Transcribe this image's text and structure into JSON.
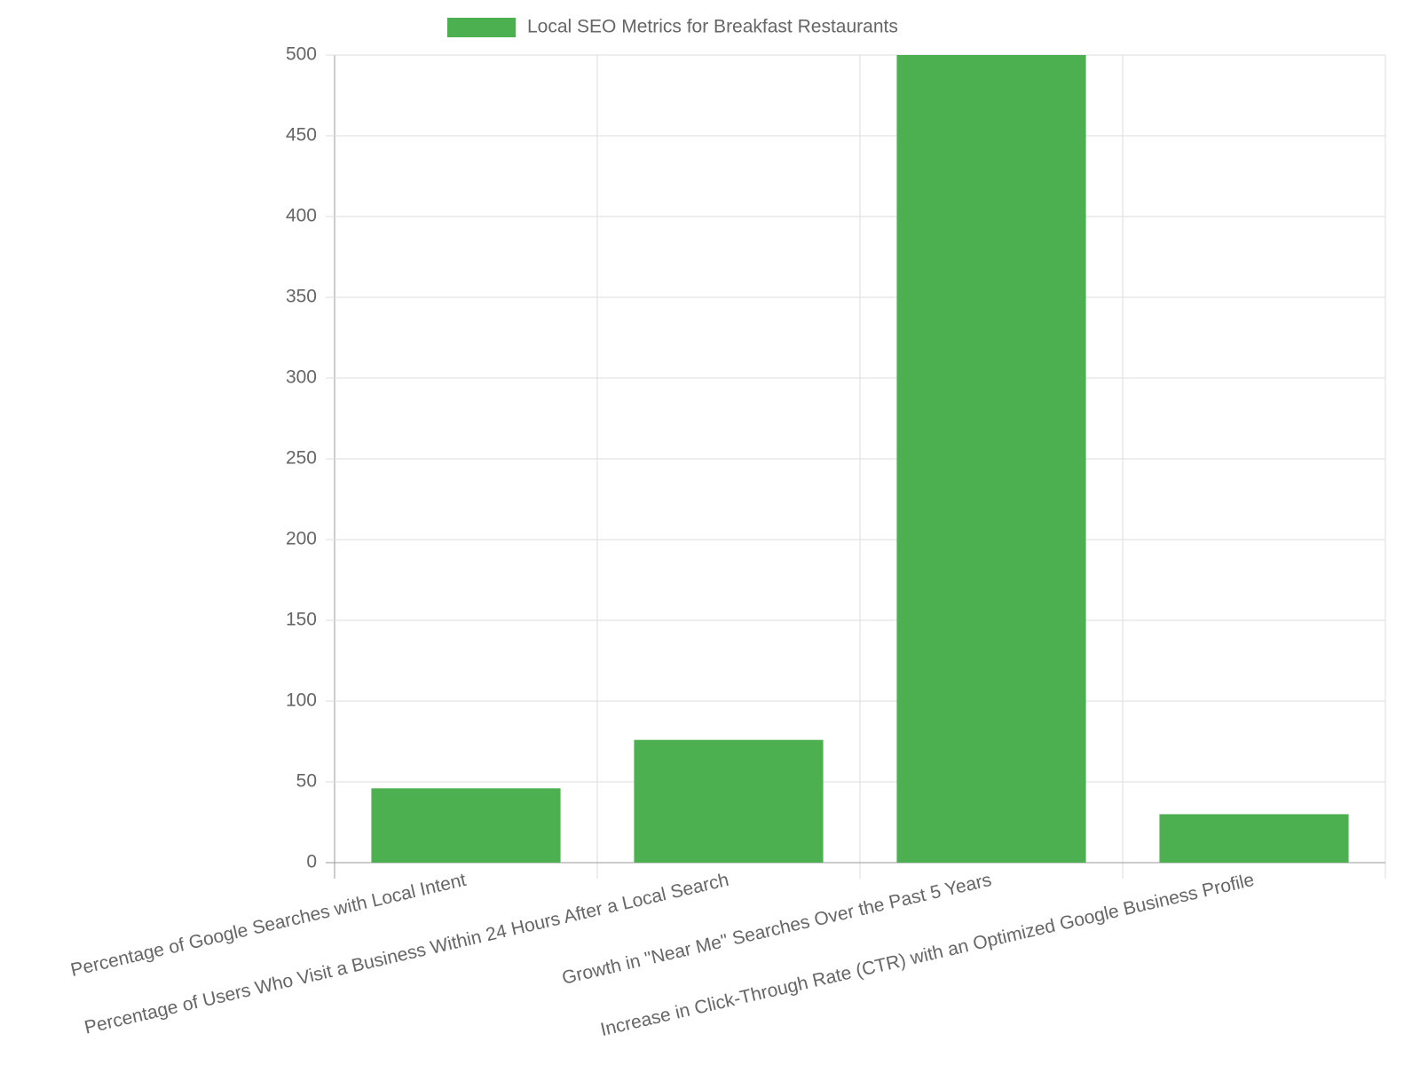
{
  "chart_data": {
    "type": "bar",
    "categories": [
      "Percentage of Google Searches with Local Intent",
      "Percentage of Users Who Visit a Business Within 24 Hours After a Local Search",
      "Growth in \"Near Me\" Searches Over the Past 5 Years",
      "Increase in Click-Through Rate (CTR) with an Optimized Google Business Profile"
    ],
    "series": [
      {
        "name": "Local SEO Metrics for Breakfast Restaurants",
        "color": "#4caf50",
        "values": [
          46,
          76,
          500,
          30
        ]
      }
    ],
    "ylim": [
      0,
      500
    ],
    "yticks": [
      0,
      50,
      100,
      150,
      200,
      250,
      300,
      350,
      400,
      450,
      500
    ],
    "grid": true,
    "legend": "top"
  }
}
